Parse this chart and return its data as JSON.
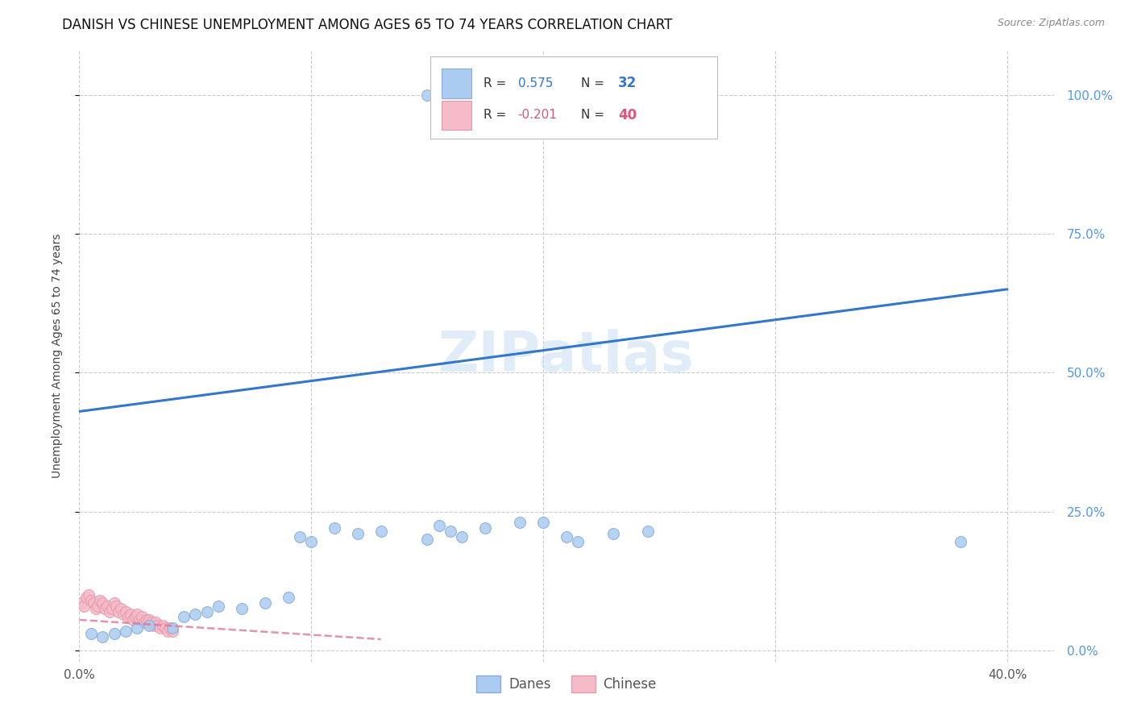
{
  "title": "DANISH VS CHINESE UNEMPLOYMENT AMONG AGES 65 TO 74 YEARS CORRELATION CHART",
  "source": "Source: ZipAtlas.com",
  "ylabel": "Unemployment Among Ages 65 to 74 years",
  "xlim": [
    0.0,
    0.42
  ],
  "ylim": [
    -0.02,
    1.08
  ],
  "xtick_labels": [
    "0.0%",
    "",
    "",
    "",
    "40.0%"
  ],
  "xtick_vals": [
    0.0,
    0.1,
    0.2,
    0.3,
    0.4
  ],
  "ytick_labels": [
    "0.0%",
    "25.0%",
    "50.0%",
    "75.0%",
    "100.0%"
  ],
  "ytick_vals": [
    0.0,
    0.25,
    0.5,
    0.75,
    1.0
  ],
  "danes_color": "#aaccf0",
  "danes_edge_color": "#88aadd",
  "chinese_color": "#f5bbc8",
  "chinese_edge_color": "#e899aa",
  "trendline_danes_color": "#3377cc",
  "trendline_chinese_color": "#dd7799",
  "danes_R": 0.575,
  "danes_N": 32,
  "chinese_R": -0.201,
  "chinese_N": 40,
  "danes_x": [
    0.005,
    0.01,
    0.015,
    0.02,
    0.025,
    0.03,
    0.04,
    0.045,
    0.05,
    0.055,
    0.06,
    0.07,
    0.08,
    0.09,
    0.095,
    0.1,
    0.11,
    0.12,
    0.13,
    0.15,
    0.155,
    0.16,
    0.165,
    0.175,
    0.19,
    0.2,
    0.21,
    0.215,
    0.23,
    0.245,
    0.38,
    0.15
  ],
  "danes_y": [
    0.03,
    0.025,
    0.03,
    0.035,
    0.04,
    0.045,
    0.04,
    0.06,
    0.065,
    0.07,
    0.08,
    0.075,
    0.085,
    0.095,
    0.205,
    0.195,
    0.22,
    0.21,
    0.215,
    0.2,
    0.225,
    0.215,
    0.205,
    0.22,
    0.23,
    0.23,
    0.205,
    0.195,
    0.21,
    0.215,
    0.195,
    1.0
  ],
  "chinese_x": [
    0.001,
    0.002,
    0.003,
    0.004,
    0.005,
    0.006,
    0.007,
    0.008,
    0.009,
    0.01,
    0.011,
    0.012,
    0.013,
    0.014,
    0.015,
    0.016,
    0.017,
    0.018,
    0.019,
    0.02,
    0.021,
    0.022,
    0.023,
    0.024,
    0.025,
    0.026,
    0.027,
    0.028,
    0.029,
    0.03,
    0.031,
    0.032,
    0.033,
    0.034,
    0.035,
    0.036,
    0.037,
    0.038,
    0.039,
    0.04
  ],
  "chinese_y": [
    0.085,
    0.08,
    0.095,
    0.1,
    0.09,
    0.085,
    0.075,
    0.08,
    0.09,
    0.085,
    0.075,
    0.08,
    0.07,
    0.075,
    0.085,
    0.08,
    0.07,
    0.075,
    0.065,
    0.07,
    0.06,
    0.065,
    0.055,
    0.06,
    0.065,
    0.055,
    0.06,
    0.05,
    0.055,
    0.055,
    0.05,
    0.045,
    0.05,
    0.045,
    0.04,
    0.045,
    0.04,
    0.035,
    0.04,
    0.035
  ],
  "watermark": "ZIPatlas",
  "background_color": "#ffffff",
  "grid_color": "#cccccc",
  "marker_size": 100,
  "title_fontsize": 12,
  "axis_label_fontsize": 10,
  "tick_fontsize": 11
}
